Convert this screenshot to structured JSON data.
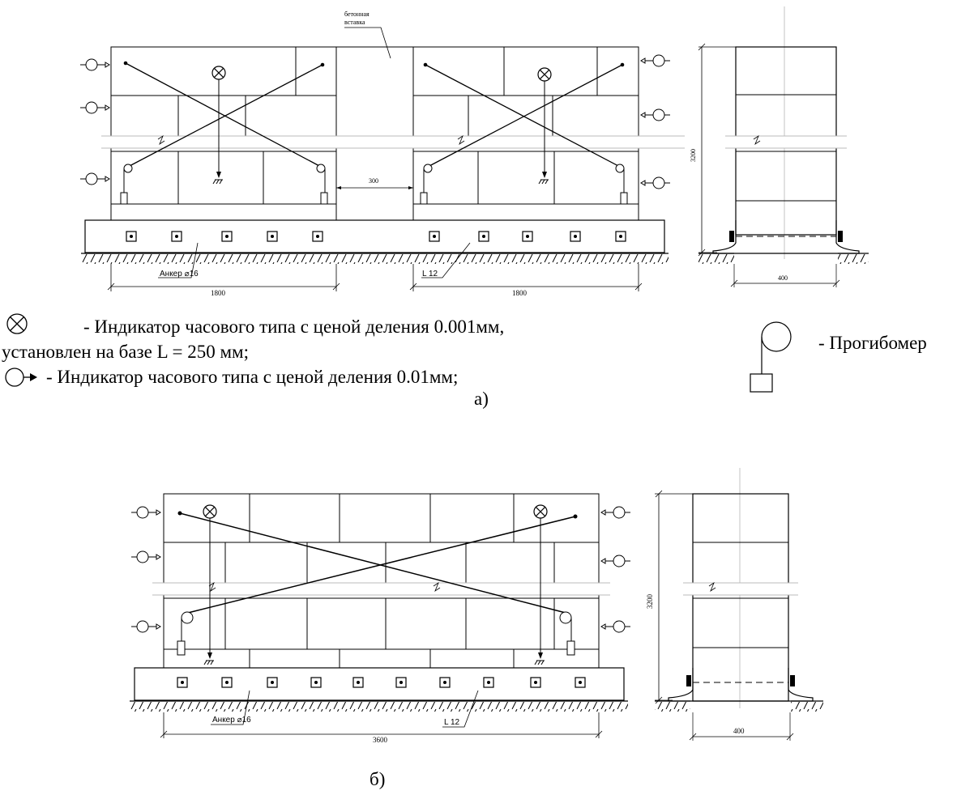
{
  "figure_a": {
    "insert_label_1": "бетонная",
    "insert_label_2": "вставка",
    "gap_dim": "300",
    "height_dim": "3200",
    "anchor_label": "Анкер ⌀16",
    "angle_label": "L 12",
    "width_left": "1800",
    "width_right": "1800",
    "side_width": "400",
    "caption": "а)"
  },
  "legend": {
    "dial_0001_text_1": "- Индикатор часового типа с ценой деления 0.001мм,",
    "dial_0001_text_2": "установлен на базе L = 250 мм;",
    "dial_001_text": "- Индикатор часового типа с ценой деления 0.01мм;",
    "deflectometer_text": "- Прогибомер"
  },
  "figure_b": {
    "height_dim": "3200",
    "anchor_label": "Анкер ⌀16",
    "angle_label": "L 12",
    "width": "3600",
    "side_width": "400",
    "caption": "б)"
  }
}
